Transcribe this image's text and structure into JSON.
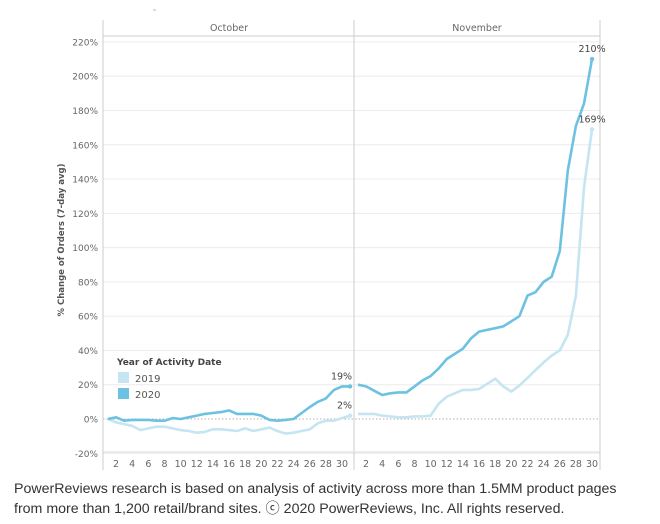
{
  "chart_data": {
    "type": "line",
    "ylabel": "% Change of Orders (7-day avg)",
    "ylim": [
      -25,
      225
    ],
    "yticks": [
      "-20%",
      "0%",
      "20%",
      "40%",
      "60%",
      "80%",
      "100%",
      "120%",
      "140%",
      "160%",
      "180%",
      "200%",
      "220%"
    ],
    "ytick_values": [
      -20,
      0,
      20,
      40,
      60,
      80,
      100,
      120,
      140,
      160,
      180,
      200,
      220
    ],
    "grid": true,
    "legend": {
      "title": "Year of Activity Date",
      "placement": "left",
      "entries": [
        "2019",
        "2020"
      ]
    },
    "colors": {
      "2019": "#c5e5f2",
      "2020": "#6cc2e0"
    },
    "panels": [
      {
        "name": "October",
        "xticks": [
          "2",
          "4",
          "6",
          "8",
          "10",
          "12",
          "14",
          "16",
          "18",
          "20",
          "22",
          "24",
          "26",
          "28",
          "30"
        ],
        "days": [
          1,
          2,
          3,
          4,
          5,
          6,
          7,
          8,
          9,
          10,
          11,
          12,
          13,
          14,
          15,
          16,
          17,
          18,
          19,
          20,
          21,
          22,
          23,
          24,
          25,
          26,
          27,
          28,
          29,
          30,
          31
        ],
        "series": [
          {
            "name": "2019",
            "values": [
              0,
              -2,
              -3,
              -4,
              -6.5,
              -5.5,
              -4.5,
              -4.5,
              -5.5,
              -6.5,
              -7,
              -8,
              -7.5,
              -6,
              -6,
              -6.5,
              -7,
              -5.5,
              -7,
              -6,
              -5,
              -7,
              -8.5,
              -8,
              -7,
              -6,
              -2.5,
              -1,
              -1,
              0.5,
              2
            ],
            "end_label": "2%"
          },
          {
            "name": "2020",
            "values": [
              0,
              1,
              -1,
              -0.5,
              -0.5,
              -0.5,
              -1,
              -1,
              0.5,
              0,
              1,
              2,
              3,
              3.5,
              4,
              5,
              3,
              3,
              3,
              2,
              -0.5,
              -1,
              -0.5,
              0,
              3.5,
              7,
              10,
              12,
              17,
              19,
              19
            ],
            "end_label": "19%"
          }
        ]
      },
      {
        "name": "November",
        "xticks": [
          "2",
          "4",
          "6",
          "8",
          "10",
          "12",
          "14",
          "16",
          "18",
          "20",
          "22",
          "24",
          "26",
          "28",
          "30"
        ],
        "days": [
          1,
          2,
          3,
          4,
          5,
          6,
          7,
          8,
          9,
          10,
          11,
          12,
          13,
          14,
          15,
          16,
          17,
          18,
          19,
          20,
          21,
          22,
          23,
          24,
          25,
          26,
          27,
          28,
          29,
          30
        ],
        "series": [
          {
            "name": "2019",
            "values": [
              3,
              3,
              3,
              2,
              1.5,
              1,
              1,
              1.5,
              1.5,
              2,
              9,
              13,
              15,
              17,
              17,
              17.5,
              20.5,
              23.5,
              19,
              16,
              19.5,
              24,
              28.5,
              33,
              37,
              40,
              49,
              72,
              135,
              169
            ],
            "end_label": "169%"
          },
          {
            "name": "2020",
            "values": [
              20,
              19,
              16.5,
              14,
              15,
              15.5,
              15.5,
              19,
              22.5,
              25,
              29.5,
              35,
              38,
              41,
              47,
              51,
              52,
              53,
              54,
              57,
              60,
              72,
              74,
              80,
              83,
              98,
              145,
              171,
              184,
              210
            ],
            "end_label": "210%"
          }
        ]
      }
    ]
  },
  "footer": {
    "line1": "PowerReviews research is based on analysis of activity across more than 1.5MM product pages",
    "line2": "from more than 1,200  retail/brand sites. ⓒ 2020 PowerReviews, Inc. All rights reserved."
  }
}
